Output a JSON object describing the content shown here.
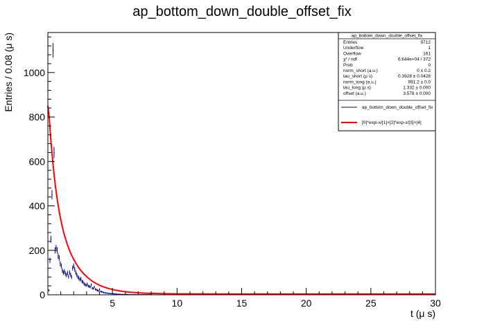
{
  "chart_data": {
    "type": "line",
    "title": "ap_bottom_down_double_offset_fix",
    "xlabel": "t (μ s)",
    "ylabel": "Entries / 0.08 (μ s)",
    "xlim": [
      0,
      30
    ],
    "ylim": [
      0,
      1180
    ],
    "xticks": [
      5,
      10,
      15,
      20,
      25,
      30
    ],
    "yticks": [
      0,
      200,
      400,
      600,
      800,
      1000
    ],
    "grid": false,
    "legend_position": "top-right",
    "series": [
      {
        "name": "ap_bottom_down_double_offset_fix",
        "kind": "histogram-errorbars",
        "color": "#000080",
        "x": [
          0.08,
          0.16,
          0.24,
          0.32,
          0.4,
          0.48,
          0.56,
          0.64,
          0.72,
          0.8,
          0.88,
          0.96,
          1.04,
          1.12,
          1.2,
          1.28,
          1.36,
          1.44,
          1.52,
          1.6,
          1.68,
          1.76,
          1.84,
          1.92,
          2.0,
          2.08,
          2.16,
          2.24,
          2.32,
          2.4,
          2.48,
          2.56,
          2.64,
          2.72,
          2.8,
          2.88,
          2.96,
          3.04,
          3.12,
          3.2,
          3.28,
          3.36,
          3.44,
          3.52,
          3.6,
          3.68,
          3.76,
          3.84,
          3.92,
          4.0,
          4.08,
          4.16,
          4.24,
          4.32,
          4.4,
          4.48,
          4.56,
          4.64,
          4.72,
          4.8,
          4.88,
          4.96,
          5.04,
          5.12,
          5.2,
          5.28,
          5.36,
          5.44,
          5.52,
          5.6,
          5.68,
          5.76,
          5.84,
          5.92,
          6.0,
          6.08,
          6.16,
          6.24,
          6.32,
          6.4,
          6.48,
          6.56,
          6.64,
          6.72,
          6.8,
          6.88,
          6.96,
          7.04,
          7.12,
          7.2,
          7.28,
          7.36,
          7.44,
          7.52,
          7.6,
          7.68,
          7.76,
          7.84,
          7.92,
          8.0
        ],
        "y": [
          20,
          155,
          250,
          450,
          1100,
          640,
          200,
          210,
          200,
          175,
          165,
          140,
          130,
          110,
          100,
          105,
          95,
          88,
          98,
          82,
          100,
          90,
          80,
          120,
          130,
          115,
          100,
          90,
          80,
          75,
          68,
          72,
          60,
          58,
          50,
          46,
          42,
          48,
          40,
          38,
          35,
          45,
          30,
          28,
          35,
          25,
          22,
          20,
          18,
          24,
          15,
          14,
          12,
          10,
          9,
          8,
          8,
          7,
          6,
          6,
          5,
          5,
          5,
          4,
          4,
          4,
          3,
          3,
          3,
          3,
          2,
          2,
          2,
          2,
          2,
          2,
          2,
          1,
          1,
          1,
          1,
          1,
          1,
          1,
          1,
          1,
          1,
          1,
          1,
          1,
          1,
          1,
          1,
          1,
          1,
          1,
          1,
          1,
          1,
          1
        ]
      },
      {
        "name": "[0]*expi-x/[1]+[2]*exp-x/[3]+[4]",
        "kind": "fit-curve",
        "color": "#ff0000",
        "x": [
          0.0,
          0.1,
          0.2,
          0.3,
          0.4,
          0.5,
          0.6,
          0.7,
          0.8,
          0.9,
          1.0,
          1.1,
          1.2,
          1.3,
          1.4,
          1.5,
          1.6,
          1.7,
          1.8,
          1.9,
          2.0,
          2.2,
          2.4,
          2.6,
          2.8,
          3.0,
          3.2,
          3.4,
          3.6,
          3.8,
          4.0,
          4.2,
          4.4,
          4.6,
          4.8,
          5.0,
          5.2,
          5.4,
          5.6,
          5.8,
          6.0,
          6.5,
          7.0,
          7.5,
          8.0,
          9.0,
          10.0,
          12.0,
          14.0,
          16.0,
          18.0,
          20.0,
          22.0,
          24.0,
          26.0,
          28.0,
          30.0
        ],
        "y": [
          850,
          803,
          720,
          650,
          588,
          532,
          483,
          440,
          402,
          368,
          338,
          311,
          287,
          265,
          246,
          228,
          212,
          197,
          183,
          171,
          159,
          139,
          121,
          106,
          93,
          82,
          72,
          63,
          55,
          49,
          43,
          38,
          34,
          30,
          27,
          24,
          21,
          19,
          17,
          15,
          14,
          11,
          9,
          7.5,
          6.4,
          5.0,
          4.3,
          3.8,
          3.6,
          3.6,
          3.6,
          3.6,
          3.6,
          3.6,
          3.6,
          3.6,
          3.6
        ]
      }
    ]
  },
  "stats_box": {
    "title": "ap_bottom_down_double_offset_fix",
    "rows": [
      {
        "label": "Entries",
        "value": "9712"
      },
      {
        "label": "Underflow",
        "value": "1"
      },
      {
        "label": "Overflow",
        "value": "161"
      },
      {
        "label": "χ² / ndf",
        "value": "6.644e+04 / 372"
      },
      {
        "label": "Prob",
        "value": "0"
      },
      {
        "label": "norm_short (a.u.)",
        "value": "0 ± 0.2"
      },
      {
        "label": "tau_short (μ s)",
        "value": "0.3928 ± 0.0428"
      },
      {
        "label": "norm_long (a.u.)",
        "value": "991.2 ± 0.0"
      },
      {
        "label": "tau_long (μ s)",
        "value": "1.332 ± 0.000"
      },
      {
        "label": "offset (a.u.)",
        "value": "3.578 ± 0.000"
      }
    ]
  },
  "legend": {
    "entries": [
      {
        "label": "ap_bottom_down_double_offset_fix",
        "color": "#000080"
      },
      {
        "label": "[0]*expi-x/[1]+[2]*exp-x/[3]+[4]",
        "color": "#ff0000"
      }
    ]
  }
}
